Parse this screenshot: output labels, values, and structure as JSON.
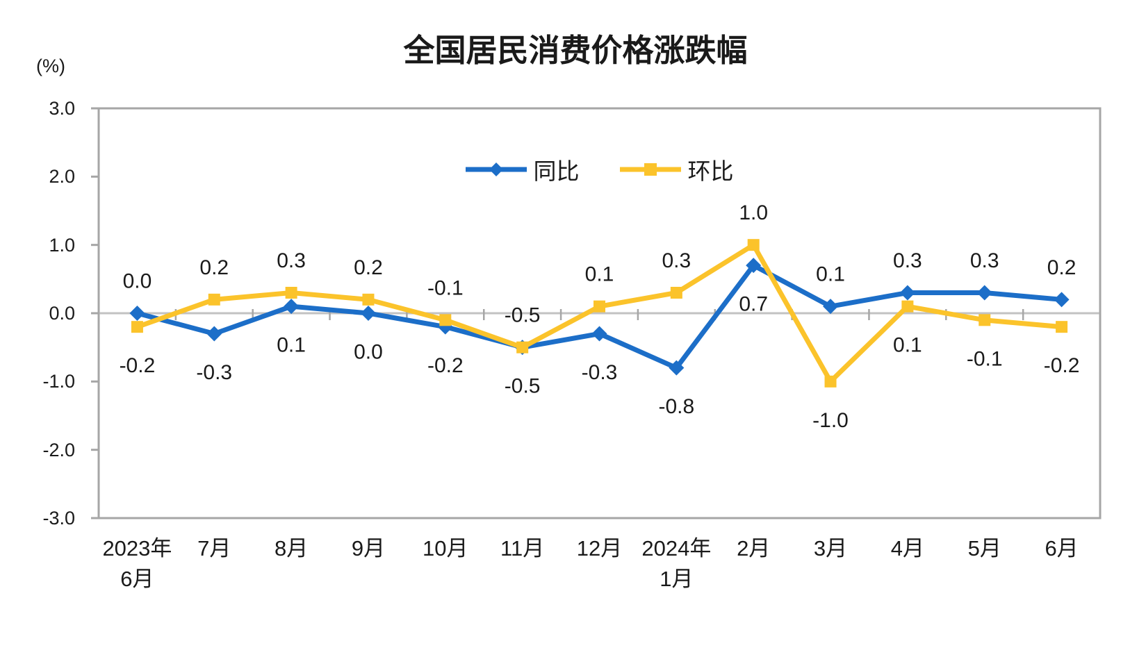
{
  "chart_data": {
    "type": "line",
    "title": "全国居民消费价格涨跌幅",
    "ylabel": "(%)",
    "ylim": [
      -3.0,
      3.0
    ],
    "ytick_step": 1.0,
    "yticks": [
      "3.0",
      "2.0",
      "1.0",
      "0.0",
      "-1.0",
      "-2.0",
      "-3.0"
    ],
    "ytick_values": [
      3.0,
      2.0,
      1.0,
      0.0,
      -1.0,
      -2.0,
      -3.0
    ],
    "categories": [
      [
        "2023年",
        "6月"
      ],
      [
        "7月"
      ],
      [
        "8月"
      ],
      [
        "9月"
      ],
      [
        "10月"
      ],
      [
        "11月"
      ],
      [
        "12月"
      ],
      [
        "2024年",
        "1月"
      ],
      [
        "2月"
      ],
      [
        "3月"
      ],
      [
        "4月"
      ],
      [
        "5月"
      ],
      [
        "6月"
      ]
    ],
    "grid": false,
    "legend_position": "top-center-inside",
    "series": [
      {
        "name": "同比",
        "color": "#1C6EC8",
        "marker": "diamond",
        "values": [
          0.0,
          -0.3,
          0.1,
          0.0,
          -0.2,
          -0.5,
          -0.3,
          -0.8,
          0.7,
          0.1,
          0.3,
          0.3,
          0.2
        ],
        "labels": [
          "0.0",
          "-0.3",
          "0.1",
          "0.0",
          "-0.2",
          "-0.5",
          "-0.3",
          "-0.8",
          "0.7",
          "0.1",
          "0.3",
          "0.3",
          "0.2"
        ],
        "label_sides": [
          "above",
          "below",
          "below",
          "below",
          "below",
          "below",
          "below",
          "below",
          "below",
          "above",
          "above",
          "above",
          "above"
        ]
      },
      {
        "name": "环比",
        "color": "#FBC32B",
        "marker": "square",
        "values": [
          -0.2,
          0.2,
          0.3,
          0.2,
          -0.1,
          -0.5,
          0.1,
          0.3,
          1.0,
          -1.0,
          0.1,
          -0.1,
          -0.2
        ],
        "labels": [
          "-0.2",
          "0.2",
          "0.3",
          "0.2",
          "-0.1",
          "-0.5",
          "0.1",
          "0.3",
          "1.0",
          "-1.0",
          "0.1",
          "-0.1",
          "-0.2"
        ],
        "label_sides": [
          "below",
          "above",
          "above",
          "above",
          "above",
          "above",
          "above",
          "above",
          "above",
          "below",
          "below",
          "below",
          "below"
        ]
      }
    ],
    "axis_colors": {
      "border": "#A6A6A6",
      "zero_line": "#C2C2C2",
      "tick": "#A6A6A6",
      "text": "#1a1a1a"
    }
  }
}
